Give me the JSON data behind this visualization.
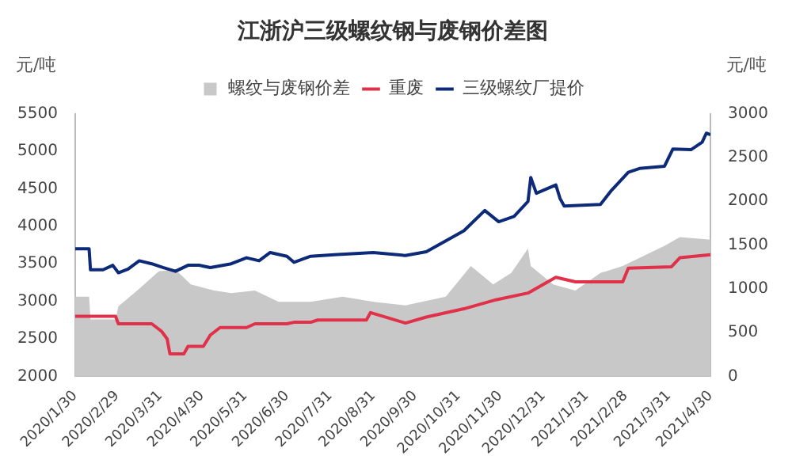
{
  "chart_data": {
    "type": "line",
    "title": "江浙沪三级螺纹钢与废钢价差图",
    "ylabel": "元/吨",
    "y2label": "元/吨",
    "legend": "top",
    "xlim": [
      "2020-01-30",
      "2021-04-30"
    ],
    "xticks": [
      {
        "value": "2020-01-30",
        "label": "2020/1/30"
      },
      {
        "value": "2020-02-29",
        "label": "2020/2/29"
      },
      {
        "value": "2020-03-31",
        "label": "2020/3/31"
      },
      {
        "value": "2020-04-30",
        "label": "2020/4/30"
      },
      {
        "value": "2020-05-31",
        "label": "2020/5/31"
      },
      {
        "value": "2020-06-30",
        "label": "2020/6/30"
      },
      {
        "value": "2020-07-31",
        "label": "2020/7/31"
      },
      {
        "value": "2020-08-31",
        "label": "2020/8/31"
      },
      {
        "value": "2020-09-30",
        "label": "2020/9/30"
      },
      {
        "value": "2020-10-31",
        "label": "2020/10/31"
      },
      {
        "value": "2020-11-30",
        "label": "2020/11/30"
      },
      {
        "value": "2020-12-31",
        "label": "2020/12/31"
      },
      {
        "value": "2021-01-31",
        "label": "2021/1/31"
      },
      {
        "value": "2021-02-28",
        "label": "2021/2/28"
      },
      {
        "value": "2021-03-31",
        "label": "2021/3/31"
      },
      {
        "value": "2021-04-30",
        "label": "2021/4/30"
      }
    ],
    "ylim": [
      2000,
      5500
    ],
    "yticks": [
      2000,
      2500,
      3000,
      3500,
      4000,
      4500,
      5000,
      5500
    ],
    "y2lim": [
      0,
      3000
    ],
    "y2ticks": [
      0,
      500,
      1000,
      1500,
      2000,
      2500,
      3000
    ],
    "series": [
      {
        "name": "螺纹与废钢价差",
        "type": "area",
        "axis": "y2",
        "color": "#c8c8c8",
        "x": [
          "2020-01-30",
          "2020-02-09",
          "2020-02-10",
          "2020-02-28",
          "2020-03-01",
          "2020-03-16",
          "2020-03-30",
          "2020-04-11",
          "2020-04-22",
          "2020-05-09",
          "2020-05-21",
          "2020-06-07",
          "2020-06-24",
          "2020-07-17",
          "2020-08-09",
          "2020-08-31",
          "2020-09-23",
          "2020-10-22",
          "2020-11-09",
          "2020-11-25",
          "2020-12-08",
          "2020-12-20",
          "2020-12-22",
          "2021-01-07",
          "2021-01-23",
          "2021-02-10",
          "2021-02-26",
          "2021-03-28",
          "2021-04-08",
          "2021-04-30"
        ],
        "values": [
          910,
          910,
          650,
          650,
          800,
          1000,
          1200,
          1220,
          1050,
          980,
          950,
          980,
          850,
          850,
          910,
          850,
          810,
          910,
          1260,
          1050,
          1180,
          1460,
          1260,
          1050,
          980,
          1180,
          1260,
          1490,
          1590,
          1560
        ]
      },
      {
        "name": "重废",
        "type": "line",
        "axis": "y",
        "color": "#e0304a",
        "x": [
          "2020-01-30",
          "2020-02-28",
          "2020-03-01",
          "2020-03-25",
          "2020-04-01",
          "2020-04-05",
          "2020-04-07",
          "2020-04-17",
          "2020-04-20",
          "2020-05-01",
          "2020-05-06",
          "2020-05-13",
          "2020-06-01",
          "2020-06-07",
          "2020-06-30",
          "2020-07-05",
          "2020-07-17",
          "2020-07-22",
          "2020-08-26",
          "2020-08-29",
          "2020-09-23",
          "2020-10-08",
          "2020-11-04",
          "2020-11-27",
          "2020-12-20",
          "2021-01-09",
          "2021-01-23",
          "2021-02-26",
          "2021-03-02",
          "2021-04-02",
          "2021-04-08",
          "2021-04-30"
        ],
        "values": [
          2800,
          2800,
          2700,
          2700,
          2600,
          2500,
          2300,
          2300,
          2400,
          2400,
          2550,
          2650,
          2650,
          2700,
          2700,
          2720,
          2720,
          2750,
          2750,
          2850,
          2710,
          2790,
          2900,
          3020,
          3110,
          3320,
          3260,
          3260,
          3440,
          3460,
          3580,
          3620
        ]
      },
      {
        "name": "三级螺纹厂提价",
        "type": "line",
        "axis": "y",
        "color": "#0c2a78",
        "x": [
          "2020-01-30",
          "2020-02-09",
          "2020-02-10",
          "2020-02-19",
          "2020-02-26",
          "2020-03-01",
          "2020-03-08",
          "2020-03-16",
          "2020-03-25",
          "2020-04-02",
          "2020-04-11",
          "2020-04-20",
          "2020-04-28",
          "2020-05-06",
          "2020-05-21",
          "2020-06-01",
          "2020-06-10",
          "2020-06-18",
          "2020-06-30",
          "2020-07-05",
          "2020-07-17",
          "2020-08-03",
          "2020-08-31",
          "2020-09-23",
          "2020-10-08",
          "2020-11-04",
          "2020-11-19",
          "2020-11-29",
          "2020-12-10",
          "2020-12-20",
          "2020-12-22",
          "2020-12-26",
          "2021-01-09",
          "2021-01-12",
          "2021-01-15",
          "2021-02-10",
          "2021-02-18",
          "2021-03-02",
          "2021-03-10",
          "2021-03-28",
          "2021-04-03",
          "2021-04-16",
          "2021-04-24",
          "2021-04-27",
          "2021-04-30"
        ],
        "values": [
          3700,
          3700,
          3420,
          3420,
          3480,
          3380,
          3430,
          3540,
          3500,
          3450,
          3400,
          3480,
          3480,
          3450,
          3500,
          3580,
          3540,
          3650,
          3600,
          3520,
          3600,
          3620,
          3650,
          3610,
          3660,
          3940,
          4210,
          4060,
          4130,
          4330,
          4650,
          4440,
          4550,
          4370,
          4270,
          4290,
          4480,
          4720,
          4770,
          4800,
          5030,
          5020,
          5120,
          5240,
          5220
        ]
      }
    ]
  }
}
